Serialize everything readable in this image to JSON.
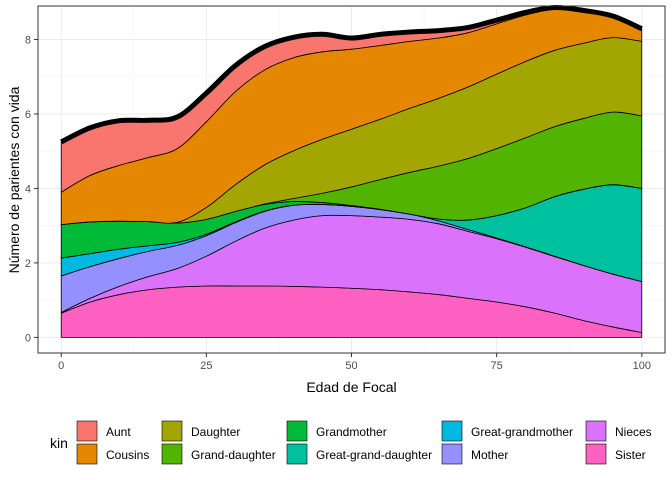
{
  "chart_data": {
    "type": "area",
    "stacked": true,
    "xlabel": "Edad de Focal",
    "ylabel": "Número de parientes con vida",
    "xlim": [
      -4,
      104
    ],
    "ylim": [
      -0.42,
      8.9
    ],
    "x_ticks": [
      0,
      25,
      50,
      75,
      100
    ],
    "y_ticks": [
      0,
      2,
      4,
      6,
      8
    ],
    "grid": true,
    "legend_title": "kin",
    "legend_position": "bottom",
    "x": [
      0,
      5,
      10,
      15,
      20,
      25,
      30,
      35,
      40,
      45,
      50,
      55,
      60,
      65,
      70,
      75,
      80,
      85,
      90,
      95,
      100
    ],
    "series": [
      {
        "name": "Sister",
        "color": "#FF61C3",
        "values": [
          0.65,
          0.95,
          1.15,
          1.28,
          1.35,
          1.38,
          1.38,
          1.38,
          1.37,
          1.35,
          1.32,
          1.28,
          1.22,
          1.15,
          1.05,
          0.95,
          0.82,
          0.65,
          0.45,
          0.28,
          0.13
        ]
      },
      {
        "name": "Nieces",
        "color": "#DB72FB",
        "values": [
          0.02,
          0.1,
          0.22,
          0.35,
          0.5,
          0.8,
          1.2,
          1.55,
          1.78,
          1.92,
          1.95,
          1.95,
          1.95,
          1.9,
          1.8,
          1.7,
          1.6,
          1.52,
          1.48,
          1.42,
          1.37
        ]
      },
      {
        "name": "Mother",
        "color": "#9590FF",
        "values": [
          0.98,
          0.85,
          0.75,
          0.68,
          0.62,
          0.55,
          0.5,
          0.45,
          0.4,
          0.3,
          0.25,
          0.2,
          0.14,
          0.08,
          0.05,
          0.02,
          0.01,
          0.01,
          0.0,
          0.0,
          0.0
        ]
      },
      {
        "name": "Great-grandmother",
        "color": "#00B9E3",
        "values": [
          0.48,
          0.35,
          0.25,
          0.15,
          0.08,
          0.04,
          0.02,
          0.01,
          0.0,
          0.0,
          0.0,
          0.0,
          0.0,
          0.0,
          0.0,
          0.0,
          0.0,
          0.0,
          0.0,
          0.0,
          0.0
        ]
      },
      {
        "name": "Great-grand-daughter",
        "color": "#00C19F",
        "values": [
          0.0,
          0.0,
          0.0,
          0.0,
          0.0,
          0.0,
          0.0,
          0.0,
          0.0,
          0.0,
          0.0,
          0.0,
          0.0,
          0.05,
          0.25,
          0.6,
          1.05,
          1.6,
          2.05,
          2.4,
          2.5
        ]
      },
      {
        "name": "Grandmother",
        "color": "#00BA38",
        "values": [
          0.9,
          0.85,
          0.75,
          0.65,
          0.52,
          0.4,
          0.28,
          0.18,
          0.1,
          0.05,
          0.02,
          0.01,
          0.0,
          0.0,
          0.0,
          0.0,
          0.0,
          0.0,
          0.0,
          0.0,
          0.0
        ]
      },
      {
        "name": "Grand-daughter",
        "color": "#53B400",
        "values": [
          0.0,
          0.0,
          0.0,
          0.0,
          0.0,
          0.0,
          0.0,
          0.01,
          0.08,
          0.25,
          0.5,
          0.8,
          1.12,
          1.42,
          1.65,
          1.8,
          1.88,
          1.88,
          1.9,
          1.95,
          1.95
        ]
      },
      {
        "name": "Daughter",
        "color": "#A3A500",
        "values": [
          0.0,
          0.0,
          0.0,
          0.0,
          0.02,
          0.32,
          0.72,
          1.05,
          1.28,
          1.45,
          1.55,
          1.62,
          1.72,
          1.82,
          1.92,
          2.0,
          2.05,
          2.05,
          2.02,
          2.0,
          2.0
        ]
      },
      {
        "name": "Cousins",
        "color": "#E58700",
        "values": [
          0.87,
          1.25,
          1.5,
          1.72,
          1.98,
          2.3,
          2.5,
          2.55,
          2.5,
          2.35,
          2.15,
          1.98,
          1.8,
          1.62,
          1.46,
          1.35,
          1.25,
          1.1,
          0.85,
          0.55,
          0.32
        ]
      },
      {
        "name": "Aunt",
        "color": "#F8766D",
        "values": [
          1.35,
          1.28,
          1.2,
          1.0,
          0.85,
          0.77,
          0.7,
          0.63,
          0.55,
          0.47,
          0.3,
          0.3,
          0.25,
          0.2,
          0.14,
          0.1,
          0.07,
          0.05,
          0.03,
          0.03,
          0.02
        ]
      }
    ],
    "legend_order": [
      "Aunt",
      "Cousins",
      "Daughter",
      "Grand-daughter",
      "Grandmother",
      "Great-grand-daughter",
      "Great-grandmother",
      "Mother",
      "Nieces",
      "Sister"
    ]
  }
}
